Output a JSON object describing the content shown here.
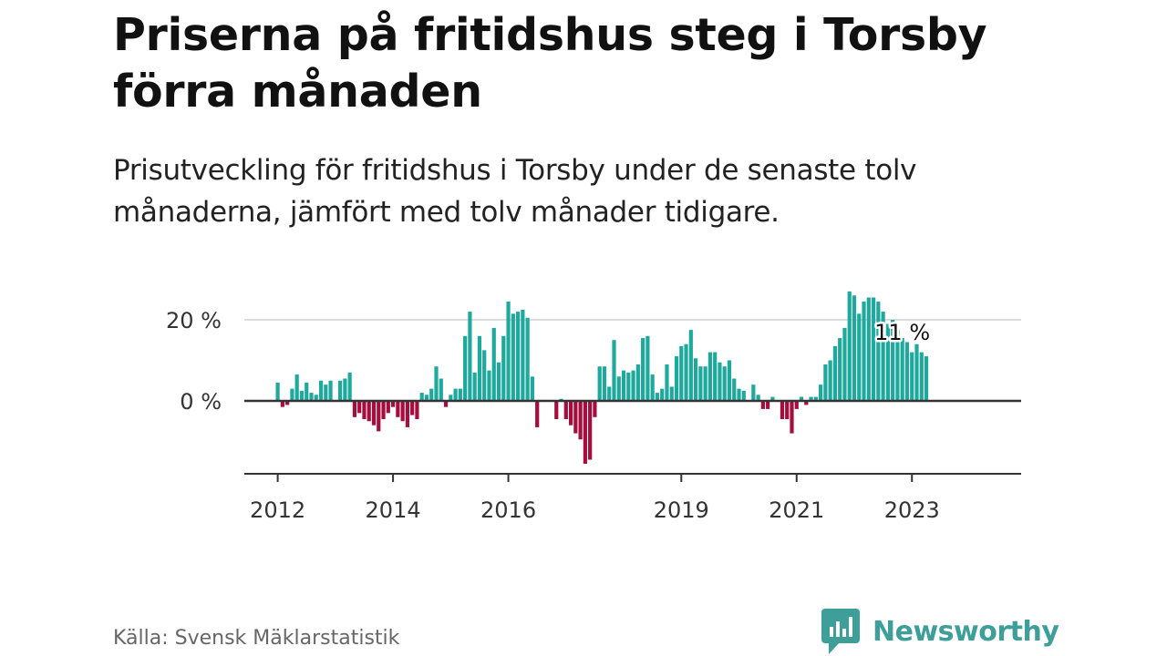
{
  "title": "Priserna på fritidshus steg i Torsby förra månaden",
  "subtitle": "Prisutveckling för fritidshus i Torsby under de senaste tolv månaderna, jämfört med tolv månader tidigare.",
  "source": "Källa: Svensk Mäklarstatistik",
  "brand": {
    "name": "Newsworthy",
    "logo_icon": "newsworthy-logo-icon"
  },
  "colors": {
    "positive": "#1fa99d",
    "negative": "#a50d3f",
    "brand": "#3d9e9a"
  },
  "chart_data": {
    "type": "bar",
    "xlabel": "",
    "ylabel": "",
    "ylim": [
      -18,
      28
    ],
    "y_ticks": [
      {
        "value": 0,
        "label": "0 %"
      },
      {
        "value": 20,
        "label": "20 %"
      }
    ],
    "x_ticks": [
      {
        "index": 0,
        "label": "2012"
      },
      {
        "index": 24,
        "label": "2014"
      },
      {
        "index": 48,
        "label": "2016"
      },
      {
        "index": 84,
        "label": "2019"
      },
      {
        "index": 108,
        "label": "2021"
      },
      {
        "index": 132,
        "label": "2023"
      }
    ],
    "grid": "horizontal",
    "annotation": {
      "label": "11 %",
      "value": 11
    },
    "values": [
      4.5,
      -1.5,
      -1,
      3,
      6.5,
      2.5,
      4.5,
      2,
      1.5,
      5,
      4,
      5,
      0,
      5,
      5.5,
      7,
      -4,
      -3,
      -4.5,
      -5,
      -6,
      -7.5,
      -4.5,
      -3,
      -1.5,
      -4,
      -5,
      -6.5,
      -3.5,
      -4.5,
      2,
      1.5,
      3,
      8.5,
      5.5,
      -1.5,
      1.5,
      3,
      3,
      16,
      22,
      7,
      16,
      12.5,
      7.5,
      18,
      9.5,
      16,
      24.5,
      21.5,
      22,
      22.5,
      20.5,
      6,
      -6.5,
      0,
      0,
      0,
      -4.5,
      0.5,
      -4.5,
      -6,
      -8,
      -9.5,
      -15.5,
      -14.5,
      -4,
      8.5,
      8.5,
      3.5,
      15,
      6,
      7.5,
      7,
      7.5,
      9,
      15.5,
      16,
      6.5,
      2,
      3,
      9,
      3.5,
      11,
      13.5,
      14,
      17.5,
      10.5,
      8.5,
      8.5,
      12,
      12,
      9.5,
      8.5,
      10,
      5.5,
      3,
      2.5,
      0,
      4,
      1.5,
      -2,
      -2,
      1,
      0,
      -4.5,
      -4.5,
      -8,
      -2,
      1,
      -1,
      1,
      1,
      4,
      9,
      10,
      13.5,
      15.5,
      18,
      27,
      26,
      21.5,
      24.5,
      25.5,
      25.5,
      24.5,
      22,
      19,
      20,
      17.5,
      15.5,
      14.5,
      12,
      14,
      12,
      11
    ]
  }
}
